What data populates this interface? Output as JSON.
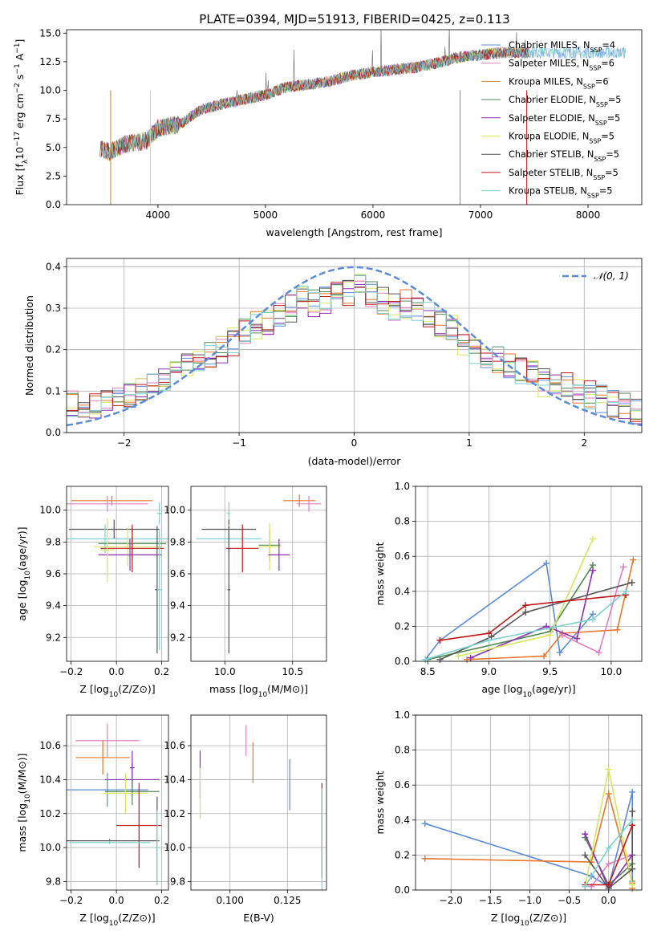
{
  "figure": {
    "title": "PLATE=0394, MJD=51913, FIBERID=0425, z=0.113"
  },
  "colors": {
    "c0": "#5b8bd9",
    "c1": "#e8762c",
    "c2": "#e07fbf",
    "c3": "#4f8a4f",
    "c4": "#8e2fb0",
    "c5": "#d8e65b",
    "c6": "#555555",
    "c7": "#c01818",
    "c8": "#7fd0d0"
  },
  "chart_data": [
    {
      "id": "spectrum",
      "type": "line",
      "xlabel": "wavelength [Angstrom, rest frame]",
      "ylabel": "Flux [f",
      "xlim": [
        3150,
        8500
      ],
      "ylim": [
        0,
        15.3
      ],
      "xticks": [
        4000,
        5000,
        6000,
        7000,
        8000
      ],
      "yticks": [
        0.0,
        2.5,
        5.0,
        7.5,
        10.0,
        12.5,
        15.0
      ],
      "grid": false,
      "legend_position": "top-right",
      "x": [
        3450,
        3550,
        3700,
        3900,
        4000,
        4200,
        4400,
        4600,
        4800,
        5000,
        5200,
        5400,
        5600,
        5800,
        6000,
        6200,
        6400,
        6600,
        6800,
        7000,
        7200,
        7400
      ],
      "y": [
        5.0,
        4.6,
        5.3,
        5.6,
        6.7,
        7.0,
        8.3,
        8.8,
        9.2,
        9.6,
        10.3,
        10.5,
        10.8,
        11.3,
        11.6,
        11.8,
        12.0,
        12.4,
        12.9,
        13.1,
        13.3,
        13.3
      ],
      "series": [
        {
          "name": "Chabrier MILES, N",
          "sub": "SSP",
          "suffix": "=4",
          "color": "#5b8bd9"
        },
        {
          "name": "Salpeter MILES, N",
          "sub": "SSP",
          "suffix": "=6",
          "color": "#e07fbf"
        },
        {
          "name": "Kroupa MILES, N",
          "sub": "SSP",
          "suffix": "=6",
          "color": "#c8822a"
        },
        {
          "name": "Chabrier ELODIE, N",
          "sub": "SSP",
          "suffix": "=5",
          "color": "#4f8a4f"
        },
        {
          "name": "Salpeter ELODIE, N",
          "sub": "SSP",
          "suffix": "=5",
          "color": "#8e2fb0"
        },
        {
          "name": "Kroupa ELODIE, N",
          "sub": "SSP",
          "suffix": "=5",
          "color": "#d8e65b"
        },
        {
          "name": "Chabrier STELIB, N",
          "sub": "SSP",
          "suffix": "=5",
          "color": "#555555"
        },
        {
          "name": "Salpeter STELIB, N",
          "sub": "SSP",
          "suffix": "=5",
          "color": "#c01818"
        },
        {
          "name": "Kroupa STELIB, N",
          "sub": "SSP",
          "suffix": "=5",
          "color": "#7fd0d0"
        }
      ]
    },
    {
      "id": "residuals",
      "type": "line",
      "xlabel": "(data-model)/error",
      "ylabel": "Normed distribution",
      "xlim": [
        -2.5,
        2.5
      ],
      "ylim": [
        0,
        0.42
      ],
      "xticks": [
        -2,
        -1,
        0,
        1,
        2
      ],
      "yticks": [
        0.0,
        0.1,
        0.2,
        0.3,
        0.4
      ],
      "grid": true,
      "legend_position": "top-right",
      "legend": "𝒩(0, 1)",
      "bins": [
        -2.5,
        -2.4,
        -2.3,
        -2.2,
        -2.1,
        -2.0,
        -1.9,
        -1.8,
        -1.7,
        -1.6,
        -1.5,
        -1.4,
        -1.3,
        -1.2,
        -1.1,
        -1.0,
        -0.9,
        -0.8,
        -0.7,
        -0.6,
        -0.5,
        -0.4,
        -0.3,
        -0.2,
        -0.1,
        0.0,
        0.1,
        0.2,
        0.3,
        0.4,
        0.5,
        0.6,
        0.7,
        0.8,
        0.9,
        1.0,
        1.1,
        1.2,
        1.3,
        1.4,
        1.5,
        1.6,
        1.7,
        1.8,
        1.9,
        2.0,
        2.1,
        2.2,
        2.3,
        2.4,
        2.5
      ],
      "hist_mean": [
        0.07,
        0.06,
        0.065,
        0.08,
        0.085,
        0.09,
        0.1,
        0.11,
        0.13,
        0.14,
        0.16,
        0.17,
        0.19,
        0.2,
        0.22,
        0.24,
        0.26,
        0.27,
        0.28,
        0.3,
        0.32,
        0.31,
        0.32,
        0.33,
        0.34,
        0.35,
        0.33,
        0.32,
        0.3,
        0.31,
        0.3,
        0.28,
        0.26,
        0.25,
        0.22,
        0.2,
        0.19,
        0.18,
        0.16,
        0.15,
        0.14,
        0.12,
        0.12,
        0.11,
        0.1,
        0.09,
        0.08,
        0.07,
        0.06,
        0.05
      ]
    },
    {
      "id": "age-vs-Z",
      "type": "scatter",
      "xlabel": "Z [log",
      "ylabel": "age  [log",
      "xlim": [
        -0.22,
        0.23
      ],
      "ylim": [
        9.05,
        10.15
      ],
      "xticks": [
        -0.2,
        0.0,
        0.2
      ],
      "yticks": [
        9.2,
        9.4,
        9.6,
        9.8,
        10.0
      ],
      "grid": true,
      "points": [
        {
          "x": -0.02,
          "y": 10.06,
          "ex": 0.18,
          "ey": 0.03,
          "c": "#e8762c"
        },
        {
          "x": -0.04,
          "y": 10.04,
          "ex": 0.18,
          "ey": 0.05,
          "c": "#e07fbf"
        },
        {
          "x": 0.19,
          "y": 9.98,
          "ex": 0.01,
          "ey": 0.07,
          "c": "#7fd0d0"
        },
        {
          "x": -0.01,
          "y": 9.88,
          "ex": 0.2,
          "ey": 0.06,
          "c": "#555555"
        },
        {
          "x": -0.05,
          "y": 9.82,
          "ex": 0.28,
          "ey": 0.09,
          "c": "#7fd0d0"
        },
        {
          "x": 0.07,
          "y": 9.79,
          "ex": 0.15,
          "ey": 0.1,
          "c": "#4f8a4f"
        },
        {
          "x": 0.05,
          "y": 9.77,
          "ex": 0.15,
          "ey": 0.12,
          "c": "#d8e65b"
        },
        {
          "x": 0.07,
          "y": 9.76,
          "ex": 0.14,
          "ey": 0.15,
          "c": "#c01818"
        },
        {
          "x": 0.06,
          "y": 9.72,
          "ex": 0.14,
          "ey": 0.1,
          "c": "#8e2fb0"
        },
        {
          "x": -0.04,
          "y": 9.75,
          "ex": 0.03,
          "ey": 0.2,
          "c": "#d8e65b"
        },
        {
          "x": 0.18,
          "y": 9.5,
          "ex": 0.01,
          "ey": 0.4,
          "c": "#555555"
        },
        {
          "x": 0.19,
          "y": 9.5,
          "ex": 0.01,
          "ey": 0.38,
          "c": "#7fd0d0"
        }
      ]
    },
    {
      "id": "age-vs-mass",
      "type": "scatter",
      "xlabel": "mass [log",
      "ylabel": "",
      "xlim": [
        9.75,
        10.75
      ],
      "ylim": [
        9.05,
        10.15
      ],
      "xticks": [
        10.0,
        10.5
      ],
      "yticks": [
        9.2,
        9.4,
        9.6,
        9.8,
        10.0
      ],
      "grid": true,
      "points": [
        {
          "x": 10.55,
          "y": 10.06,
          "ex": 0.12,
          "ey": 0.04,
          "c": "#e8762c"
        },
        {
          "x": 10.62,
          "y": 10.04,
          "ex": 0.09,
          "ey": 0.05,
          "c": "#e07fbf"
        },
        {
          "x": 10.03,
          "y": 9.98,
          "ex": 0.01,
          "ey": 0.07,
          "c": "#7fd0d0"
        },
        {
          "x": 10.03,
          "y": 9.88,
          "ex": 0.2,
          "ey": 0.06,
          "c": "#555555"
        },
        {
          "x": 10.03,
          "y": 9.82,
          "ex": 0.24,
          "ey": 0.09,
          "c": "#7fd0d0"
        },
        {
          "x": 10.33,
          "y": 9.78,
          "ex": 0.08,
          "ey": 0.1,
          "c": "#4f8a4f"
        },
        {
          "x": 10.33,
          "y": 9.77,
          "ex": 0.08,
          "ey": 0.15,
          "c": "#d8e65b"
        },
        {
          "x": 10.13,
          "y": 9.76,
          "ex": 0.12,
          "ey": 0.15,
          "c": "#c01818"
        },
        {
          "x": 10.4,
          "y": 9.72,
          "ex": 0.08,
          "ey": 0.1,
          "c": "#8e2fb0"
        },
        {
          "x": 10.03,
          "y": 9.5,
          "ex": 0.01,
          "ey": 0.4,
          "c": "#555555"
        }
      ]
    },
    {
      "id": "weight-vs-age",
      "type": "line",
      "xlabel": "age  [log",
      "ylabel": "mass weight",
      "xlim": [
        8.4,
        10.25
      ],
      "ylim": [
        0,
        1.0
      ],
      "xticks": [
        8.5,
        9.0,
        9.5,
        10.0
      ],
      "yticks": [
        0.0,
        0.2,
        0.4,
        0.6,
        0.8,
        1.0
      ],
      "grid": true,
      "series": [
        {
          "c": "#5b8bd9",
          "x": [
            8.48,
            8.6,
            9.47,
            9.58,
            9.85
          ],
          "y": [
            0.01,
            0.12,
            0.56,
            0.05,
            0.27
          ]
        },
        {
          "c": "#e8762c",
          "x": [
            8.82,
            9.45,
            9.6,
            10.05,
            10.18
          ],
          "y": [
            0.01,
            0.03,
            0.16,
            0.18,
            0.58
          ]
        },
        {
          "c": "#e07fbf",
          "x": [
            9.6,
            9.9,
            10.1
          ],
          "y": [
            0.15,
            0.05,
            0.54
          ]
        },
        {
          "c": "#4f8a4f",
          "x": [
            8.5,
            9.5,
            9.85
          ],
          "y": [
            0.01,
            0.17,
            0.55
          ]
        },
        {
          "c": "#8e2fb0",
          "x": [
            8.85,
            9.47,
            9.72,
            9.85
          ],
          "y": [
            0.02,
            0.2,
            0.13,
            0.52
          ]
        },
        {
          "c": "#d8e65b",
          "x": [
            8.75,
            9.5,
            9.85
          ],
          "y": [
            0.03,
            0.15,
            0.7
          ]
        },
        {
          "c": "#555555",
          "x": [
            8.6,
            9.02,
            9.3,
            10.17
          ],
          "y": [
            0.01,
            0.14,
            0.28,
            0.45
          ]
        },
        {
          "c": "#c01818",
          "x": [
            8.6,
            9.0,
            9.3,
            10.12
          ],
          "y": [
            0.12,
            0.16,
            0.32,
            0.38
          ]
        },
        {
          "c": "#7fd0d0",
          "x": [
            8.48,
            9.0,
            9.85,
            10.12
          ],
          "y": [
            0.01,
            0.12,
            0.24,
            0.4
          ]
        }
      ]
    },
    {
      "id": "mass-vs-Z",
      "type": "scatter",
      "xlabel": "Z [log",
      "ylabel": "mass [log",
      "xlim": [
        -0.22,
        0.23
      ],
      "ylim": [
        9.75,
        10.78
      ],
      "xticks": [
        -0.2,
        0.0,
        0.2
      ],
      "yticks": [
        9.8,
        10.0,
        10.2,
        10.4,
        10.6
      ],
      "grid": true,
      "points": [
        {
          "x": -0.04,
          "y": 10.63,
          "ex": 0.14,
          "ey": 0.1,
          "c": "#e07fbf"
        },
        {
          "x": -0.06,
          "y": 10.53,
          "ex": 0.12,
          "ey": 0.1,
          "c": "#e8762c"
        },
        {
          "x": 0.07,
          "y": 10.47,
          "ex": 0.01,
          "ey": 0.1,
          "c": "#8e2fb0"
        },
        {
          "x": 0.07,
          "y": 10.4,
          "ex": 0.12,
          "ey": 0.1,
          "c": "#8e2fb0"
        },
        {
          "x": -0.04,
          "y": 10.34,
          "ex": 0.18,
          "ey": 0.1,
          "c": "#5b8bd9"
        },
        {
          "x": 0.07,
          "y": 10.33,
          "ex": 0.12,
          "ey": 0.08,
          "c": "#4f8a4f"
        },
        {
          "x": 0.04,
          "y": 10.32,
          "ex": 0.1,
          "ey": 0.12,
          "c": "#d8e65b"
        },
        {
          "x": 0.1,
          "y": 10.13,
          "ex": 0.1,
          "ey": 0.25,
          "c": "#c01818"
        },
        {
          "x": 0.18,
          "y": 10.04,
          "ex": 0.01,
          "ey": 0.26,
          "c": "#555555"
        },
        {
          "x": -0.03,
          "y": 10.04,
          "ex": 0.2,
          "ey": 0.01,
          "c": "#555555"
        },
        {
          "x": -0.03,
          "y": 10.03,
          "ex": 0.18,
          "ey": 0.01,
          "c": "#7fd0d0"
        },
        {
          "x": 0.18,
          "y": 10.0,
          "ex": 0.01,
          "ey": 0.22,
          "c": "#7fd0d0"
        }
      ]
    },
    {
      "id": "mass-vs-ebv",
      "type": "scatter",
      "xlabel": "E(B-V)",
      "ylabel": "",
      "xlim": [
        0.083,
        0.142
      ],
      "ylim": [
        9.75,
        10.78
      ],
      "xticks": [
        0.1,
        0.125
      ],
      "yticks": [
        9.8,
        10.0,
        10.2,
        10.4,
        10.6
      ],
      "grid": true,
      "points": [
        {
          "x": 0.107,
          "y": 10.63,
          "ey": 0.09,
          "c": "#e07fbf"
        },
        {
          "x": 0.11,
          "y": 10.5,
          "ey": 0.12,
          "c": "#e8762c"
        },
        {
          "x": 0.087,
          "y": 10.43,
          "ey": 0.14,
          "c": "#8e2fb0"
        },
        {
          "x": 0.087,
          "y": 10.32,
          "ey": 0.15,
          "c": "#d8e65b"
        },
        {
          "x": 0.126,
          "y": 10.37,
          "ey": 0.15,
          "c": "#5b8bd9"
        },
        {
          "x": 0.14,
          "y": 10.1,
          "ey": 0.28,
          "c": "#c01818"
        },
        {
          "x": 0.14,
          "y": 10.05,
          "ey": 0.3,
          "c": "#7fd0d0"
        }
      ]
    },
    {
      "id": "weight-vs-Z",
      "type": "line",
      "xlabel": "Z [log",
      "ylabel": "mass weight",
      "xlim": [
        -2.45,
        0.42
      ],
      "ylim": [
        0,
        1.0
      ],
      "xticks": [
        -2.0,
        -1.5,
        -1.0,
        -0.5,
        0.0
      ],
      "yticks": [
        0.0,
        0.2,
        0.4,
        0.6,
        0.8,
        1.0
      ],
      "grid": true,
      "series": [
        {
          "c": "#5b8bd9",
          "x": [
            -2.33,
            -0.22,
            0.0,
            0.3,
            0.3
          ],
          "y": [
            0.38,
            0.08,
            0.02,
            0.56,
            0.05
          ]
        },
        {
          "c": "#e8762c",
          "x": [
            -2.33,
            -0.22,
            0.0,
            0.3,
            0.3
          ],
          "y": [
            0.18,
            0.16,
            0.55,
            0.04,
            0.01
          ]
        },
        {
          "c": "#e07fbf",
          "x": [
            -0.22,
            0.0,
            0.3
          ],
          "y": [
            0.02,
            0.15,
            0.2
          ]
        },
        {
          "c": "#4f8a4f",
          "x": [
            -0.3,
            0.0,
            0.3
          ],
          "y": [
            0.3,
            0.03,
            0.15
          ]
        },
        {
          "c": "#8e2fb0",
          "x": [
            -0.3,
            0.0,
            0.3
          ],
          "y": [
            0.32,
            0.01,
            0.2
          ]
        },
        {
          "c": "#d8e65b",
          "x": [
            -0.3,
            0.0,
            0.3
          ],
          "y": [
            0.02,
            0.69,
            0.03
          ]
        },
        {
          "c": "#555555",
          "x": [
            -0.3,
            0.0,
            0.3,
            0.3
          ],
          "y": [
            0.2,
            0.01,
            0.12,
            0.45
          ]
        },
        {
          "c": "#c01818",
          "x": [
            -0.3,
            0.0,
            0.3
          ],
          "y": [
            0.03,
            0.03,
            0.37
          ]
        },
        {
          "c": "#7fd0d0",
          "x": [
            -0.3,
            0.0,
            0.3
          ],
          "y": [
            0.02,
            0.24,
            0.4
          ]
        }
      ]
    }
  ]
}
